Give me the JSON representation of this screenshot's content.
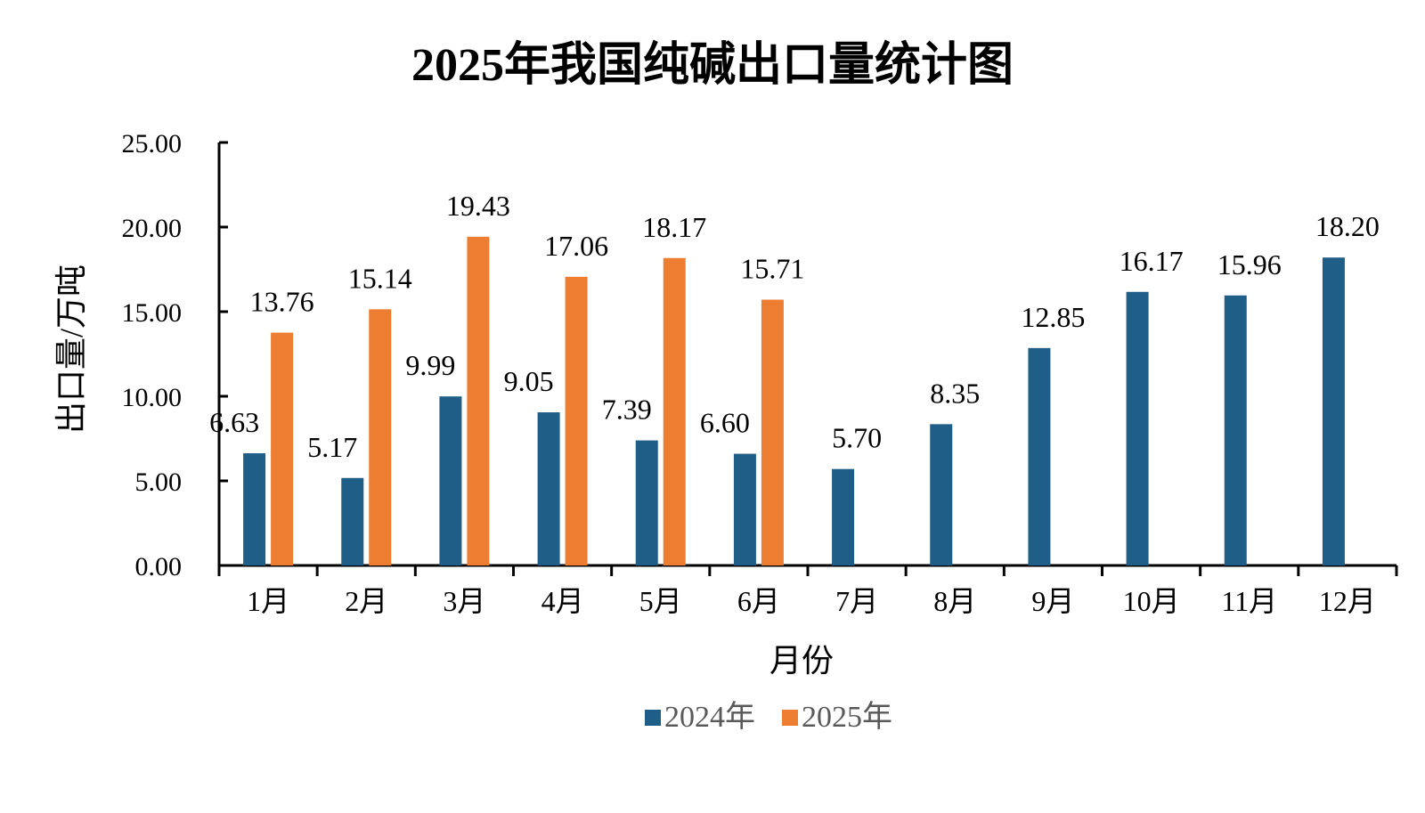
{
  "chart_data": {
    "type": "bar",
    "title": "2025年我国纯碱出口量统计图",
    "xlabel": "月份",
    "ylabel": "出口量/万吨",
    "ylim": [
      0,
      25
    ],
    "yticks": [
      0,
      5,
      10,
      15,
      20,
      25
    ],
    "ytick_labels": [
      "0.00",
      "5.00",
      "10.00",
      "15.00",
      "20.00",
      "25.00"
    ],
    "categories": [
      "1月",
      "2月",
      "3月",
      "4月",
      "5月",
      "6月",
      "7月",
      "8月",
      "9月",
      "10月",
      "11月",
      "12月"
    ],
    "series": [
      {
        "name": "2024年",
        "color": "#1f5e86",
        "values": [
          6.63,
          5.17,
          9.99,
          9.05,
          7.39,
          6.6,
          5.7,
          8.35,
          12.85,
          16.17,
          15.96,
          18.2
        ],
        "labels": [
          "6.63",
          "5.17",
          "9.99",
          "9.05",
          "7.39",
          "6.60",
          "5.70",
          "8.35",
          "12.85",
          "16.17",
          "15.96",
          "18.20"
        ]
      },
      {
        "name": "2025年",
        "color": "#ed7d31",
        "values": [
          13.76,
          15.14,
          19.43,
          17.06,
          18.17,
          15.71,
          null,
          null,
          null,
          null,
          null,
          null
        ],
        "labels": [
          "13.76",
          "15.14",
          "19.43",
          "17.06",
          "18.17",
          "15.71",
          "",
          "",
          "",
          "",
          "",
          ""
        ]
      }
    ],
    "legend_position": "bottom",
    "grid": false
  }
}
